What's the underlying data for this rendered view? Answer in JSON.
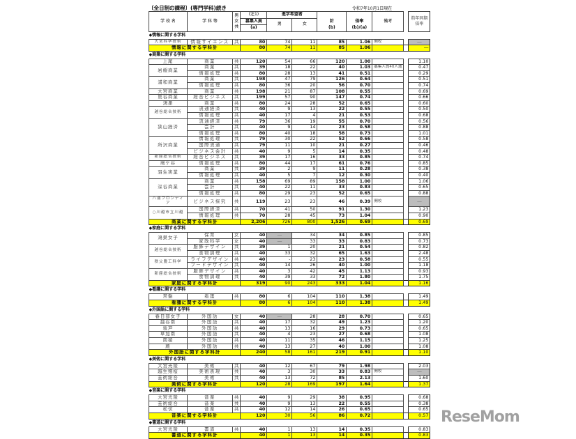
{
  "title": "〔全日制の課程〕(専門学科)続き",
  "as_of": "令和7年10月1日現在",
  "headers": {
    "school": "学 校 名",
    "dept": "学 科 等",
    "sex": "男女共",
    "note1": "(注1)",
    "capacity": "募集人員",
    "capacity_sub": "(a)",
    "applicants": "進学希望者",
    "male": "男",
    "female": "女",
    "total": "計",
    "total_sub": "(b)",
    "ratio": "倍率",
    "ratio_sub": "(b)/(a)",
    "remarks": "備考",
    "prev": "前年同期倍率"
  },
  "sections": [
    {
      "title": "◆情報に関する学科",
      "schools": [
        {
          "name": "大宮科学技術",
          "rows": [
            [
              "情報サイエンス",
              "共",
              "80",
              "74",
              "11",
              "85",
              "1.06",
              "開校",
              "―"
            ]
          ]
        }
      ],
      "total": {
        "label": "情報に関する学科計",
        "values": [
          "80",
          "74",
          "11",
          "85",
          "1.06",
          "",
          "―"
        ]
      }
    },
    {
      "title": "◆商業に関する学科",
      "schools": [
        {
          "name": "上尾",
          "rows": [
            [
              "商業",
              "共",
              "120",
              "54",
              "66",
              "120",
              "1.00",
              "",
              "1.10"
            ]
          ]
        },
        {
          "name": "岩槻商業",
          "rows": [
            [
              "商業",
              "共",
              "39",
              "18",
              "22",
              "40",
              "1.03",
              "募集人員40人減",
              "0.47"
            ],
            [
              "情報処理",
              "共",
              "80",
              "28",
              "13",
              "41",
              "0.51",
              "",
              "0.29"
            ]
          ]
        },
        {
          "name": "浦和商業",
          "rows": [
            [
              "商業",
              "共",
              "198",
              "47",
              "79",
              "126",
              "0.64",
              "",
              "0.51"
            ],
            [
              "情報処理",
              "共",
              "80",
              "36",
              "20",
              "56",
              "0.70",
              "",
              "0.74"
            ]
          ]
        },
        {
          "name": "大宮商業",
          "rows": [
            [
              "商業",
              "共",
              "198",
              "21",
              "87",
              "108",
              "0.55",
              "",
              "0.69"
            ]
          ]
        },
        {
          "name": "熊谷商業",
          "rows": [
            [
              "総合ビジネス",
              "共",
              "199",
              "57",
              "90",
              "147",
              "0.74",
              "",
              "0.66"
            ]
          ]
        },
        {
          "name": "鴻巣",
          "rows": [
            [
              "商業",
              "共",
              "80",
              "24",
              "28",
              "52",
              "0.65",
              "",
              "0.60"
            ]
          ]
        },
        {
          "name": "越谷総合技術",
          "rows": [
            [
              "流通経済",
              "共",
              "40",
              "9",
              "13",
              "22",
              "0.55",
              "",
              "0.50"
            ],
            [
              "情報処理",
              "共",
              "40",
              "17",
              "4",
              "21",
              "0.53",
              "",
              "0.68"
            ]
          ]
        },
        {
          "name": "狭山経済",
          "rows": [
            [
              "流通経済",
              "共",
              "79",
              "36",
              "19",
              "55",
              "0.70",
              "",
              "0.56"
            ],
            [
              "会計",
              "共",
              "40",
              "9",
              "14",
              "23",
              "0.58",
              "",
              "0.88"
            ],
            [
              "情報処理",
              "共",
              "80",
              "40",
              "18",
              "58",
              "0.73",
              "",
              "1.01"
            ]
          ]
        },
        {
          "name": "所沢商業",
          "rows": [
            [
              "情報処理",
              "共",
              "79",
              "30",
              "22",
              "52",
              "0.66",
              "",
              "0.58"
            ],
            [
              "国際流通",
              "共",
              "79",
              "11",
              "10",
              "21",
              "0.27",
              "",
              "0.46"
            ],
            [
              "ビジネス会計",
              "共",
              "40",
              "9",
              "5",
              "14",
              "0.35",
              "",
              "0.48"
            ]
          ]
        },
        {
          "name": "新座総合技術",
          "rows": [
            [
              "総合ビジネス",
              "共",
              "39",
              "17",
              "16",
              "33",
              "0.85",
              "",
              "0.74"
            ]
          ]
        },
        {
          "name": "鳩ケ谷",
          "rows": [
            [
              "情報処理",
              "共",
              "80",
              "44",
              "17",
              "61",
              "0.76",
              "",
              "0.85"
            ]
          ]
        },
        {
          "name": "羽生実業",
          "rows": [
            [
              "商業",
              "共",
              "39",
              "2",
              "9",
              "11",
              "0.28",
              "",
              "0.38"
            ],
            [
              "情報処理",
              "共",
              "40",
              "5",
              "7",
              "12",
              "0.30",
              "",
              "0.40"
            ]
          ]
        },
        {
          "name": "深谷商業",
          "rows": [
            [
              "商業",
              "共",
              "158",
              "69",
              "89",
              "158",
              "1.00",
              "",
              "1.06"
            ],
            [
              "会計",
              "共",
              "40",
              "22",
              "11",
              "33",
              "0.83",
              "",
              "0.65"
            ],
            [
              "情報処理",
              "共",
              "80",
              "29",
              "23",
              "52",
              "0.65",
              "",
              "0.88"
            ]
          ]
        },
        {
          "name": "八潮フロンティア",
          "rows": [
            [
              "ビジネス探究",
              "共",
              "119",
              "23",
              "23",
              "46",
              "0.39",
              "開校",
              "―"
            ]
          ]
        },
        {
          "name": "○川越市立川越",
          "rows": [
            [
              "国際経済",
              "共",
              "70",
              "41",
              "50",
              "91",
              "1.30",
              "",
              "1.23"
            ],
            [
              "情報処理",
              "共",
              "70",
              "28",
              "45",
              "73",
              "1.04",
              "",
              "0.90"
            ]
          ]
        }
      ],
      "total": {
        "label": "商業に関する学科計",
        "values": [
          "2,206",
          "726",
          "800",
          "1,526",
          "0.69",
          "",
          "0.69"
        ]
      }
    },
    {
      "title": "◆家庭に関する学科",
      "schools": [
        {
          "name": "鴻巣女子",
          "rows": [
            [
              "保育",
              "女",
              "40",
              "―",
              "34",
              "34",
              "0.85",
              "",
              "0.85"
            ],
            [
              "家政科学",
              "女",
              "40",
              "―",
              "33",
              "33",
              "0.83",
              "",
              "0.73"
            ]
          ]
        },
        {
          "name": "越谷総合技術",
          "rows": [
            [
              "服飾デザイン",
              "共",
              "39",
              "1",
              "20",
              "21",
              "0.54",
              "",
              "0.82"
            ],
            [
              "食物調理",
              "共",
              "40",
              "33",
              "32",
              "65",
              "1.63",
              "",
              "2.48"
            ]
          ]
        },
        {
          "name": "秩父農工科学",
          "rows": [
            [
              "ライフデザイン",
              "共",
              "40",
              "-",
              "23",
              "23",
              "0.58",
              "",
              "0.55"
            ],
            [
              "フードデザイン",
              "共",
              "40",
              "14",
              "26",
              "40",
              "1.00",
              "",
              "1.18"
            ]
          ]
        },
        {
          "name": "新座総合技術",
          "rows": [
            [
              "服飾デザイン",
              "共",
              "40",
              "3",
              "42",
              "45",
              "1.13",
              "",
              "0.93"
            ],
            [
              "食物調理",
              "共",
              "40",
              "39",
              "33",
              "72",
              "1.80",
              "",
              "1.75"
            ]
          ]
        }
      ],
      "total": {
        "label": "家庭に関する学科計",
        "values": [
          "319",
          "90",
          "243",
          "333",
          "1.04",
          "",
          "1.16"
        ]
      }
    },
    {
      "title": "◆看護に関する学科",
      "schools": [
        {
          "name": "常盤",
          "rows": [
            [
              "看護",
              "共",
              "80",
              "6",
              "104",
              "110",
              "1.38",
              "",
              "1.49"
            ]
          ]
        }
      ],
      "total": {
        "label": "看護に関する学科計",
        "values": [
          "80",
          "6",
          "104",
          "110",
          "1.38",
          "",
          "1.49"
        ]
      }
    },
    {
      "title": "◆外国語に関する学科",
      "schools": [
        {
          "name": "春日部女子",
          "rows": [
            [
              "外国語",
              "女",
              "40",
              "―",
              "28",
              "28",
              "0.70",
              "",
              "0.65"
            ]
          ]
        },
        {
          "name": "越谷南",
          "rows": [
            [
              "外国語",
              "共",
              "40",
              "17",
              "32",
              "49",
              "1.23",
              "",
              "1.20"
            ]
          ]
        },
        {
          "name": "坂戸",
          "rows": [
            [
              "外国語",
              "共",
              "40",
              "13",
              "16",
              "29",
              "0.73",
              "",
              "0.65"
            ]
          ]
        },
        {
          "name": "草加南",
          "rows": [
            [
              "外国語",
              "共",
              "40",
              "4",
              "23",
              "27",
              "0.68",
              "",
              "1.08"
            ]
          ]
        },
        {
          "name": "南稜",
          "rows": [
            [
              "外国語",
              "共",
              "40",
              "11",
              "35",
              "46",
              "1.15",
              "",
              "1.25"
            ]
          ]
        },
        {
          "name": "蕨",
          "rows": [
            [
              "外国語",
              "共",
              "40",
              "13",
              "27",
              "40",
              "1.00",
              "",
              "1.08"
            ]
          ]
        }
      ],
      "total": {
        "label": "外国語に関する学科計",
        "values": [
          "240",
          "58",
          "161",
          "219",
          "0.91",
          "",
          "1.10"
        ]
      }
    },
    {
      "title": "◆美術に関する学科",
      "schools": [
        {
          "name": "大宮光陵",
          "rows": [
            [
              "美術",
              "共",
              "40",
              "12",
              "67",
              "79",
              "1.98",
              "",
              "2.03"
            ]
          ]
        },
        {
          "name": "越生翔桜",
          "rows": [
            [
              "美術表現",
              "共",
              "40",
              "3",
              "30",
              "33",
              "0.83",
              "開校",
              "―"
            ]
          ]
        },
        {
          "name": "芸術総合",
          "rows": [
            [
              "美術",
              "共",
              "40",
              "13",
              "72",
              "85",
              "2.13",
              "",
              "1.60"
            ]
          ]
        }
      ],
      "total": {
        "label": "美術に関する学科計",
        "values": [
          "120",
          "28",
          "169",
          "197",
          "1.64",
          "",
          "1.37"
        ]
      }
    },
    {
      "title": "◆音楽に関する学科",
      "schools": [
        {
          "name": "大宮光陵",
          "rows": [
            [
              "音楽",
              "共",
              "40",
              "9",
              "29",
              "38",
              "0.95",
              "",
              "0.68"
            ]
          ]
        },
        {
          "name": "芸術総合",
          "rows": [
            [
              "音楽",
              "共",
              "40",
              "9",
              "13",
              "22",
              "0.55",
              "",
              "0.38"
            ]
          ]
        },
        {
          "name": "松伏",
          "rows": [
            [
              "音楽",
              "共",
              "40",
              "12",
              "14",
              "26",
              "0.65",
              "",
              "0.65"
            ]
          ]
        }
      ],
      "total": {
        "label": "音楽に関する学科計",
        "values": [
          "120",
          "30",
          "56",
          "86",
          "0.72",
          "",
          "0.57"
        ]
      }
    },
    {
      "title": "◆書道に関する学科",
      "schools": [
        {
          "name": "大宮光陵",
          "rows": [
            [
              "書道",
              "共",
              "40",
              "1",
              "13",
              "14",
              "0.35",
              "",
              "0.83"
            ]
          ]
        }
      ],
      "total": {
        "label": "書道に関する学科計",
        "values": [
          "40",
          "1",
          "13",
          "14",
          "0.35",
          "",
          "0.83"
        ]
      }
    }
  ],
  "colors": {
    "total_row": "#ffff00",
    "na_cell": "#bdbdbd"
  },
  "watermark": "ReseMom"
}
